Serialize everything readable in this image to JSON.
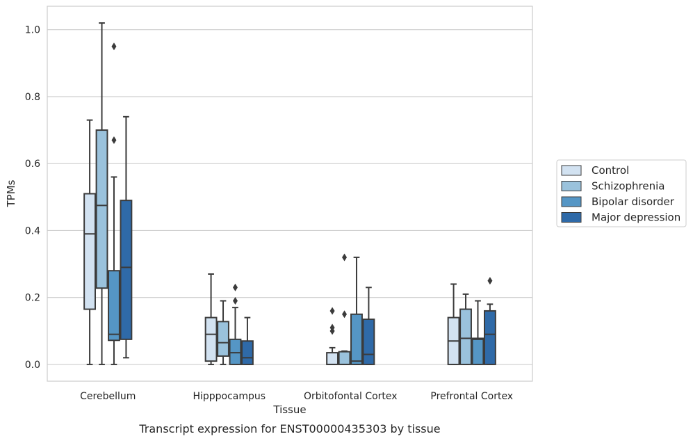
{
  "chart_data": {
    "type": "box",
    "xlabel": "Tissue",
    "ylabel": "TPMs",
    "caption": "Transcript expression for ENST00000435303 by tissue",
    "ylim": [
      -0.05,
      1.07
    ],
    "yticks": [
      "0.0",
      "0.2",
      "0.4",
      "0.6",
      "0.8",
      "1.0"
    ],
    "ytick_values": [
      0.0,
      0.2,
      0.4,
      0.6,
      0.8,
      1.0
    ],
    "grid": "horizontal",
    "legend_position": "right",
    "categories": [
      "Cerebellum",
      "Hipppocampus",
      "Orbitofontal Cortex",
      "Prefrontal Cortex"
    ],
    "series": [
      {
        "name": "Control",
        "color": "#d2e2f1",
        "boxes": [
          {
            "whisker_low": 0.0,
            "q1": 0.165,
            "median": 0.39,
            "q3": 0.51,
            "whisker_high": 0.73,
            "outliers": []
          },
          {
            "whisker_low": 0.0,
            "q1": 0.01,
            "median": 0.09,
            "q3": 0.14,
            "whisker_high": 0.27,
            "outliers": []
          },
          {
            "whisker_low": 0.0,
            "q1": 0.0,
            "median": 0.0,
            "q3": 0.035,
            "whisker_high": 0.05,
            "outliers": [
              0.16,
              0.11,
              0.1
            ]
          },
          {
            "whisker_low": 0.0,
            "q1": 0.0,
            "median": 0.07,
            "q3": 0.14,
            "whisker_high": 0.24,
            "outliers": []
          }
        ]
      },
      {
        "name": "Schizophrenia",
        "color": "#9ac2dc",
        "boxes": [
          {
            "whisker_low": 0.0,
            "q1": 0.228,
            "median": 0.475,
            "q3": 0.7,
            "whisker_high": 1.02,
            "outliers": []
          },
          {
            "whisker_low": 0.0,
            "q1": 0.025,
            "median": 0.065,
            "q3": 0.128,
            "whisker_high": 0.19,
            "outliers": []
          },
          {
            "whisker_low": 0.0,
            "q1": 0.0,
            "median": 0.0,
            "q3": 0.038,
            "whisker_high": 0.04,
            "outliers": [
              0.32,
              0.15
            ]
          },
          {
            "whisker_low": 0.0,
            "q1": 0.0,
            "median": 0.078,
            "q3": 0.165,
            "whisker_high": 0.21,
            "outliers": []
          }
        ]
      },
      {
        "name": "Bipolar disorder",
        "color": "#5596c5",
        "boxes": [
          {
            "whisker_low": 0.0,
            "q1": 0.072,
            "median": 0.09,
            "q3": 0.28,
            "whisker_high": 0.56,
            "outliers": [
              0.95,
              0.67
            ]
          },
          {
            "whisker_low": 0.0,
            "q1": 0.0,
            "median": 0.035,
            "q3": 0.075,
            "whisker_high": 0.17,
            "outliers": [
              0.23,
              0.19
            ]
          },
          {
            "whisker_low": 0.0,
            "q1": 0.0,
            "median": 0.01,
            "q3": 0.15,
            "whisker_high": 0.32,
            "outliers": []
          },
          {
            "whisker_low": 0.0,
            "q1": 0.0,
            "median": 0.075,
            "q3": 0.078,
            "whisker_high": 0.19,
            "outliers": []
          }
        ]
      },
      {
        "name": "Major depression",
        "color": "#2f6aa8",
        "boxes": [
          {
            "whisker_low": 0.02,
            "q1": 0.075,
            "median": 0.29,
            "q3": 0.49,
            "whisker_high": 0.74,
            "outliers": []
          },
          {
            "whisker_low": 0.0,
            "q1": 0.0,
            "median": 0.02,
            "q3": 0.07,
            "whisker_high": 0.14,
            "outliers": []
          },
          {
            "whisker_low": 0.0,
            "q1": 0.0,
            "median": 0.03,
            "q3": 0.135,
            "whisker_high": 0.23,
            "outliers": []
          },
          {
            "whisker_low": 0.0,
            "q1": 0.0,
            "median": 0.09,
            "q3": 0.16,
            "whisker_high": 0.18,
            "outliers": [
              0.25
            ]
          }
        ]
      }
    ]
  }
}
